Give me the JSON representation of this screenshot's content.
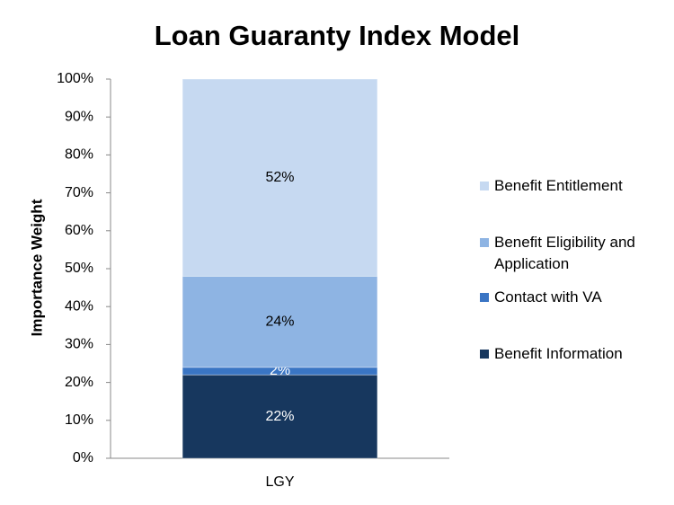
{
  "chart_data": {
    "type": "stacked_bar",
    "title": "Loan Guaranty Index Model",
    "y_label": "Importance Weight",
    "categories": [
      "LGY"
    ],
    "series": [
      {
        "name": "Benefit Information",
        "color": "#17375e",
        "label_color": "#ffffff",
        "values": [
          22
        ],
        "value_labels": [
          "22%"
        ]
      },
      {
        "name": "Contact with VA",
        "color": "#3a75c4",
        "label_color": "#ffffff",
        "values": [
          2
        ],
        "value_labels": [
          "2%"
        ]
      },
      {
        "name": "Benefit Eligibility and Application",
        "color": "#8eb4e3",
        "label_color": "#000000",
        "values": [
          24
        ],
        "value_labels": [
          "24%"
        ]
      },
      {
        "name": "Benefit Entitlement",
        "color": "#c6d9f1",
        "label_color": "#000000",
        "values": [
          52
        ],
        "value_labels": [
          "52%"
        ]
      }
    ],
    "ylim": [
      0,
      100
    ],
    "yticks": [
      {
        "value": 0,
        "label": "0%"
      },
      {
        "value": 10,
        "label": "10%"
      },
      {
        "value": 20,
        "label": "20%"
      },
      {
        "value": 30,
        "label": "30%"
      },
      {
        "value": 40,
        "label": "40%"
      },
      {
        "value": 50,
        "label": "50%"
      },
      {
        "value": 60,
        "label": "60%"
      },
      {
        "value": 70,
        "label": "70%"
      },
      {
        "value": 80,
        "label": "80%"
      },
      {
        "value": 90,
        "label": "90%"
      },
      {
        "value": 100,
        "label": "100%"
      }
    ],
    "grid": false,
    "legend": "right"
  }
}
